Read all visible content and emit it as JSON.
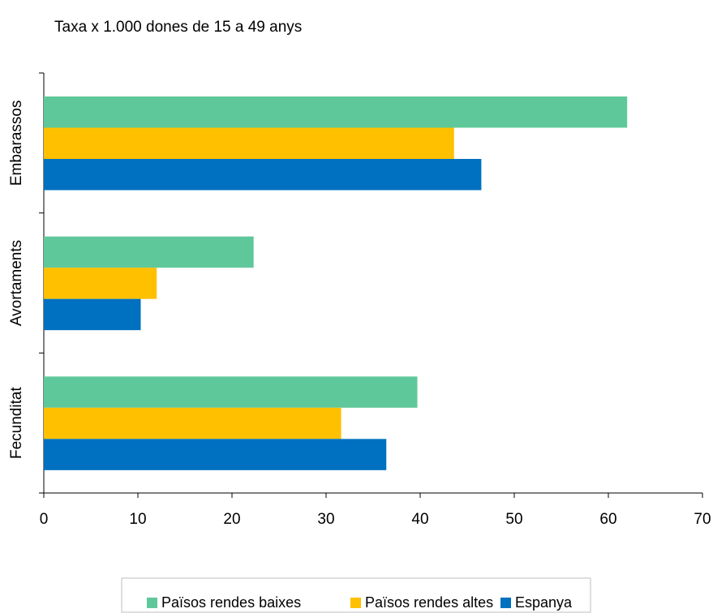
{
  "chart_data": {
    "type": "bar",
    "orientation": "horizontal",
    "title": "Taxa x 1.000 dones de 15 a 49 anys",
    "categories": [
      "Embarassos",
      "Avortaments",
      "Fecunditat"
    ],
    "series": [
      {
        "name": "Països rendes baixes",
        "values": [
          62,
          22.3,
          39.7
        ],
        "color": "#5fc89a"
      },
      {
        "name": "Països rendes altes",
        "values": [
          43.6,
          12.0,
          31.6
        ],
        "color": "#ffc000"
      },
      {
        "name": "Espanya",
        "values": [
          46.5,
          10.3,
          36.4
        ],
        "color": "#0070c0"
      }
    ],
    "xlim": [
      0,
      70
    ],
    "xticks": [
      0,
      10,
      20,
      30,
      40,
      50,
      60,
      70
    ],
    "grid": false,
    "legend_position": "bottom"
  }
}
